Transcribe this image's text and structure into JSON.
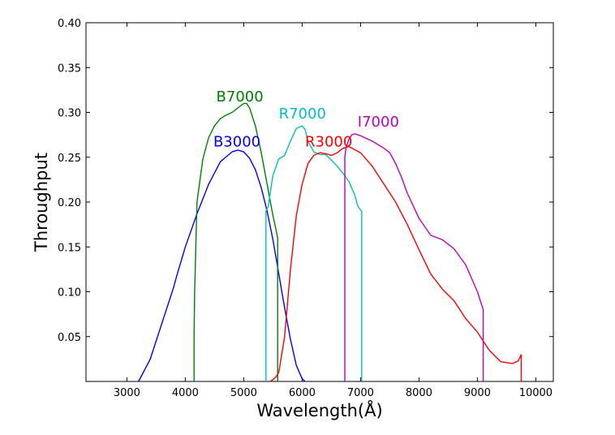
{
  "chart_data": {
    "type": "line",
    "title": "",
    "xlabel": "Wavelength(Å)",
    "ylabel": "Throughput",
    "xlim": [
      2300,
      10300
    ],
    "ylim": [
      0,
      0.4
    ],
    "grid": false,
    "x_ticks": [
      3000,
      4000,
      5000,
      6000,
      7000,
      8000,
      9000,
      10000
    ],
    "x_tick_labels": [
      "3000",
      "4000",
      "5000",
      "6000",
      "7000",
      "8000",
      "9000",
      "10000"
    ],
    "y_ticks": [
      0.05,
      0.1,
      0.15,
      0.2,
      0.25,
      0.3,
      0.35,
      0.4
    ],
    "y_tick_labels": [
      "0.05",
      "0.10",
      "0.15",
      "0.20",
      "0.25",
      "0.30",
      "0.35",
      "0.40"
    ],
    "series": [
      {
        "name": "B3000",
        "color": "#0000ff",
        "label": {
          "text": "B3000",
          "x": 4480,
          "y": 0.262
        },
        "x": [
          3200,
          3400,
          3600,
          3800,
          3850,
          4000,
          4200,
          4400,
          4600,
          4800,
          4900,
          5000,
          5100,
          5200,
          5300,
          5400,
          5500,
          5600,
          5700,
          5800,
          5900,
          6000,
          6050
        ],
        "y": [
          0.0,
          0.025,
          0.065,
          0.105,
          0.117,
          0.15,
          0.187,
          0.22,
          0.245,
          0.256,
          0.258,
          0.256,
          0.249,
          0.236,
          0.216,
          0.19,
          0.158,
          0.12,
          0.082,
          0.047,
          0.018,
          0.003,
          0.0
        ]
      },
      {
        "name": "B7000",
        "color": "#008000",
        "label": {
          "text": "B7000",
          "x": 4530,
          "y": 0.312
        },
        "x": [
          4150,
          4150,
          4160,
          4200,
          4300,
          4400,
          4500,
          4600,
          4700,
          4800,
          4900,
          5000,
          5050,
          5100,
          5200,
          5300,
          5400,
          5500,
          5550,
          5580,
          5580
        ],
        "y": [
          0.0,
          0.05,
          0.1,
          0.2,
          0.248,
          0.272,
          0.285,
          0.293,
          0.297,
          0.3,
          0.305,
          0.31,
          0.31,
          0.305,
          0.285,
          0.255,
          0.22,
          0.185,
          0.17,
          0.16,
          0.0
        ]
      },
      {
        "name": "R7000",
        "color": "#00bfbf",
        "label": {
          "text": "R7000",
          "x": 5600,
          "y": 0.293
        },
        "x": [
          5380,
          5380,
          5420,
          5500,
          5600,
          5700,
          5800,
          5900,
          6000,
          6050,
          6100,
          6200,
          6300,
          6400,
          6500,
          6600,
          6700,
          6800,
          6900,
          6950,
          7000,
          7020,
          7020
        ],
        "y": [
          0.0,
          0.19,
          0.195,
          0.23,
          0.248,
          0.252,
          0.268,
          0.282,
          0.285,
          0.281,
          0.268,
          0.256,
          0.253,
          0.253,
          0.247,
          0.24,
          0.232,
          0.223,
          0.208,
          0.196,
          0.191,
          0.19,
          0.0
        ]
      },
      {
        "name": "R3000",
        "color": "#ff0000",
        "label": {
          "text": "R3000",
          "x": 6050,
          "y": 0.262
        },
        "x": [
          5450,
          5500,
          5550,
          5600,
          5700,
          5800,
          5900,
          6000,
          6100,
          6200,
          6300,
          6400,
          6500,
          6600,
          6700,
          6800,
          7000,
          7200,
          7400,
          7600,
          7800,
          8000,
          8200,
          8400,
          8600,
          8800,
          9000,
          9200,
          9400,
          9600,
          9700,
          9750,
          9750
        ],
        "y": [
          0.0,
          0.002,
          0.005,
          0.01,
          0.05,
          0.125,
          0.185,
          0.22,
          0.243,
          0.252,
          0.255,
          0.254,
          0.252,
          0.255,
          0.26,
          0.262,
          0.255,
          0.24,
          0.22,
          0.2,
          0.175,
          0.147,
          0.12,
          0.103,
          0.09,
          0.07,
          0.055,
          0.035,
          0.022,
          0.02,
          0.023,
          0.03,
          0.0
        ]
      },
      {
        "name": "I7000",
        "color": "#bf00bf",
        "label": {
          "text": "I7000",
          "x": 6950,
          "y": 0.284
        },
        "x": [
          6730,
          6730,
          6750,
          6800,
          6850,
          6900,
          7000,
          7200,
          7400,
          7500,
          7600,
          7700,
          7800,
          8000,
          8200,
          8400,
          8600,
          8800,
          9000,
          9100,
          9100
        ],
        "y": [
          0.0,
          0.25,
          0.26,
          0.27,
          0.275,
          0.276,
          0.274,
          0.268,
          0.26,
          0.255,
          0.243,
          0.228,
          0.21,
          0.182,
          0.163,
          0.158,
          0.148,
          0.13,
          0.1,
          0.08,
          0.0
        ]
      }
    ]
  }
}
